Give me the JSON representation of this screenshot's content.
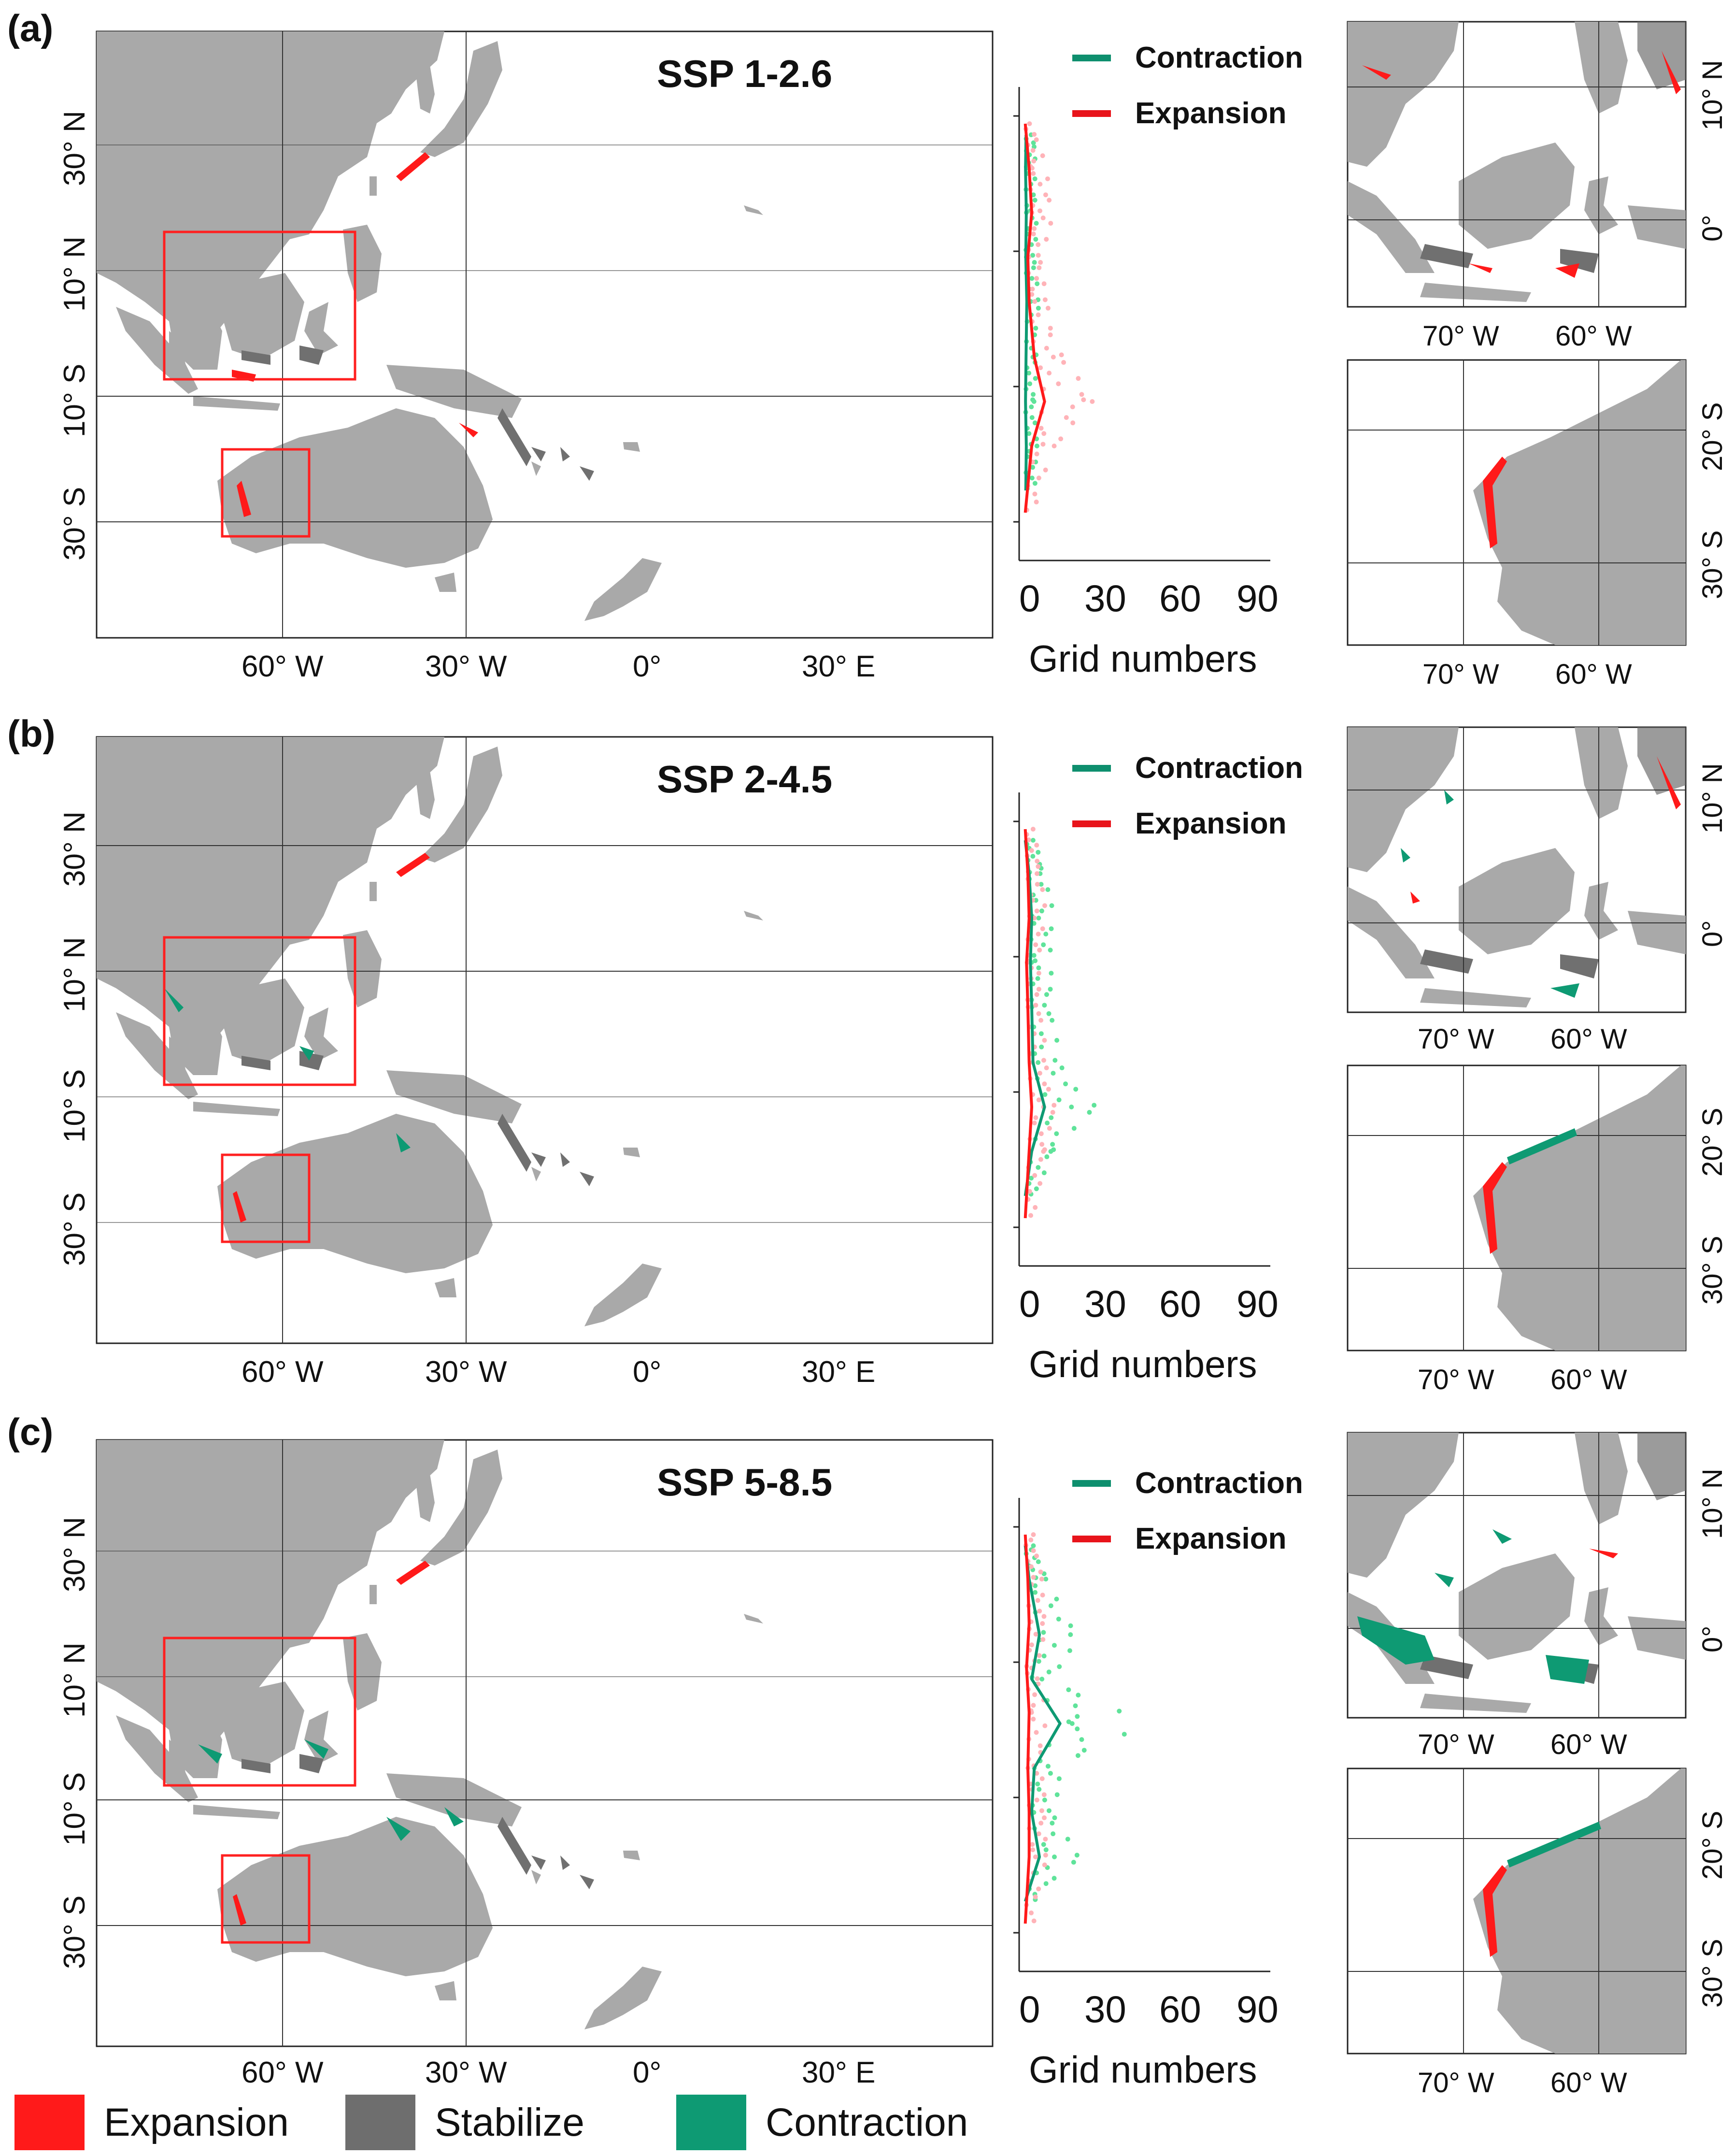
{
  "panels": [
    {
      "letter": "(a)",
      "scenario": "SSP 1-2.6"
    },
    {
      "letter": "(b)",
      "scenario": "SSP 2-4.5"
    },
    {
      "letter": "(c)",
      "scenario": "SSP 5-8.5"
    }
  ],
  "main_map": {
    "x_ticks": [
      "60° W",
      "30° W",
      "0°",
      "30° E"
    ],
    "y_ticks": [
      "30° N",
      "10° N",
      "10° S",
      "30° S"
    ]
  },
  "inset_top": {
    "x_ticks": [
      "70° W",
      "60° W"
    ],
    "y_ticks": [
      "10° N",
      "0°"
    ]
  },
  "inset_bottom": {
    "x_ticks": [
      "70° W",
      "60° W"
    ],
    "y_ticks": [
      "20° S",
      "30° S"
    ]
  },
  "side_plot": {
    "legend": [
      {
        "name": "Contraction",
        "color": "#0e8f6e"
      },
      {
        "name": "Expansion",
        "color": "#e8141b"
      }
    ],
    "x_ticks": [
      "0",
      "30",
      "60",
      "90"
    ],
    "xlabel": "Grid numbers"
  },
  "legend": [
    {
      "name": "Expansion",
      "color": "#ff1a1a"
    },
    {
      "name": "Stabilize",
      "color": "#6e6e6e"
    },
    {
      "name": "Contraction",
      "color": "#0e9a73"
    }
  ],
  "colors": {
    "land": "#a9a9a9",
    "stabilize": "#707070",
    "expansion": "#ff1a1a",
    "contraction": "#0e9a73",
    "expansion_points": "#ffb3b8",
    "contraction_points": "#5fe39a",
    "box": "#ff2020"
  },
  "chart_data": [
    {
      "type": "line",
      "panel": "(a)",
      "xlim": [
        0,
        90
      ],
      "xlabel": "Grid numbers",
      "series": [
        {
          "name": "Contraction",
          "x": [
            0.8,
            0.6,
            0.9,
            0.7,
            1.1,
            0.8,
            0.6,
            0.9,
            0.7
          ],
          "y": [
            34,
            28,
            20,
            12,
            4,
            -6,
            -14,
            -22,
            -30
          ]
        },
        {
          "name": "Expansion",
          "x": [
            0.5,
            2,
            3,
            1.5,
            2,
            4,
            8,
            3,
            0.5
          ],
          "y": [
            36,
            28,
            20,
            12,
            4,
            -6,
            -14,
            -22,
            -34
          ]
        }
      ]
    },
    {
      "type": "line",
      "panel": "(b)",
      "xlim": [
        0,
        90
      ],
      "xlabel": "Grid numbers",
      "series": [
        {
          "name": "Contraction",
          "x": [
            0.5,
            2,
            3,
            2.5,
            3,
            3.5,
            8,
            3,
            0.5
          ],
          "y": [
            34,
            28,
            20,
            12,
            4,
            -6,
            -14,
            -22,
            -30
          ]
        },
        {
          "name": "Expansion",
          "x": [
            0.5,
            1.5,
            2,
            1,
            1.5,
            2,
            3,
            2,
            0.5
          ],
          "y": [
            36,
            28,
            20,
            12,
            4,
            -6,
            -14,
            -22,
            -34
          ]
        }
      ]
    },
    {
      "type": "line",
      "panel": "(c)",
      "xlim": [
        0,
        90
      ],
      "xlabel": "Grid numbers",
      "series": [
        {
          "name": "Contraction",
          "x": [
            0.5,
            2,
            6,
            3,
            14,
            4,
            3,
            6,
            0.5
          ],
          "y": [
            34,
            28,
            18,
            10,
            2,
            -6,
            -14,
            -22,
            -30
          ]
        },
        {
          "name": "Expansion",
          "x": [
            0.5,
            1.5,
            2,
            1,
            2,
            1.5,
            2,
            2,
            0.5
          ],
          "y": [
            36,
            28,
            20,
            12,
            4,
            -6,
            -14,
            -22,
            -34
          ]
        }
      ]
    }
  ]
}
